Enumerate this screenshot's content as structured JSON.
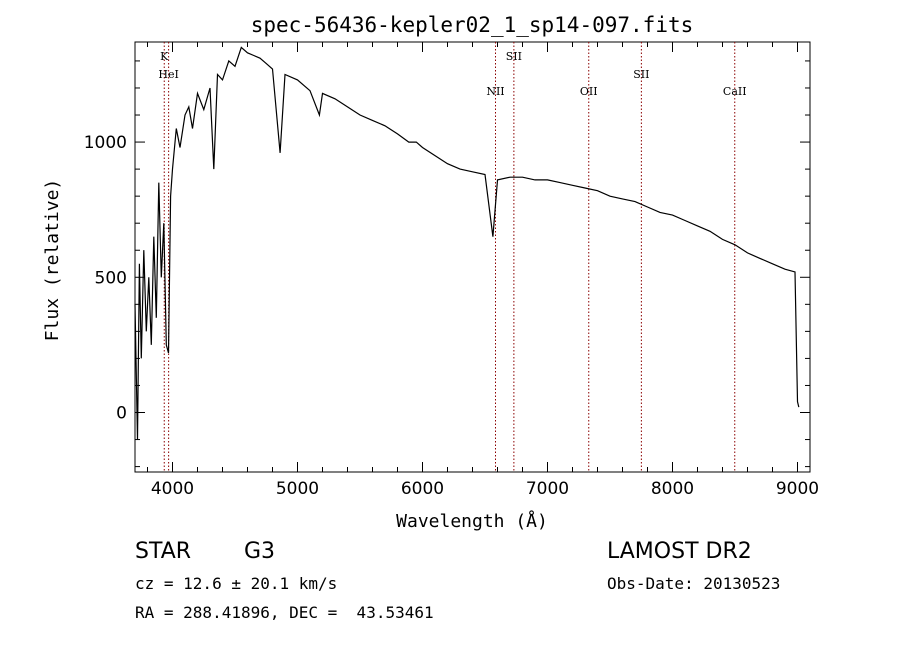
{
  "chart_data": {
    "type": "line",
    "title": "spec-56436-kepler02_1_sp14-097.fits",
    "xlabel": "Wavelength (Å)",
    "ylabel": "Flux (relative)",
    "xlim": [
      3700,
      9100
    ],
    "ylim": [
      -220,
      1370
    ],
    "xticks": [
      4000,
      5000,
      6000,
      7000,
      8000,
      9000
    ],
    "yticks": [
      0,
      500,
      1000
    ],
    "grid": false,
    "series": [
      {
        "x": [
          3700,
          3720,
          3735,
          3750,
          3770,
          3790,
          3810,
          3830,
          3850,
          3870,
          3890,
          3910,
          3930,
          3950,
          3968,
          3985,
          4000,
          4030,
          4060,
          4100,
          4130,
          4160,
          4200,
          4250,
          4300,
          4330,
          4360,
          4400,
          4450,
          4500,
          4550,
          4600,
          4650,
          4700,
          4750,
          4800,
          4861,
          4900,
          5000,
          5100,
          5175,
          5200,
          5300,
          5400,
          5500,
          5600,
          5700,
          5800,
          5890,
          5950,
          6000,
          6100,
          6200,
          6300,
          6400,
          6500,
          6563,
          6600,
          6700,
          6800,
          6900,
          7000,
          7100,
          7200,
          7300,
          7400,
          7500,
          7600,
          7700,
          7800,
          7900,
          8000,
          8100,
          8200,
          8300,
          8400,
          8500,
          8600,
          8700,
          8800,
          8900,
          8980,
          9000,
          9010
        ],
        "y": [
          400,
          -100,
          550,
          200,
          600,
          300,
          500,
          250,
          650,
          350,
          850,
          500,
          700,
          250,
          220,
          800,
          900,
          1050,
          980,
          1100,
          1130,
          1050,
          1180,
          1120,
          1200,
          900,
          1250,
          1230,
          1300,
          1280,
          1350,
          1330,
          1320,
          1310,
          1290,
          1270,
          960,
          1250,
          1230,
          1190,
          1100,
          1180,
          1160,
          1130,
          1100,
          1080,
          1060,
          1030,
          1000,
          1000,
          980,
          950,
          920,
          900,
          890,
          880,
          650,
          860,
          870,
          870,
          860,
          860,
          850,
          840,
          830,
          820,
          800,
          790,
          780,
          760,
          740,
          730,
          710,
          690,
          670,
          640,
          620,
          590,
          570,
          550,
          530,
          520,
          40,
          20
        ]
      }
    ],
    "lines": [
      {
        "label": "K",
        "x": 3934
      },
      {
        "label": "HeI",
        "x": 3969
      },
      {
        "label": "NII",
        "x": 6584
      },
      {
        "label": "SII",
        "x": 6731
      },
      {
        "label": "OII",
        "x": 7330
      },
      {
        "label": "SII",
        "x": 7751
      },
      {
        "label": "CaII",
        "x": 8498
      }
    ],
    "line_color": "#8b0000"
  },
  "info": {
    "object": "STAR",
    "subclass": "G3",
    "survey": "LAMOST DR2",
    "cz": "cz = 12.6 ± 20.1 km/s",
    "obs_date": "Obs-Date: 20130523",
    "coords": "RA = 288.41896, DEC =  43.53461"
  }
}
